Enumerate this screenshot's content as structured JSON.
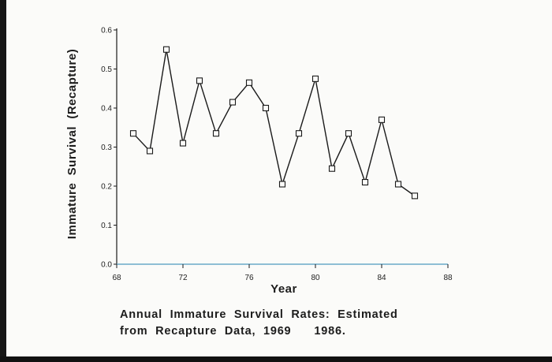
{
  "chart_data": {
    "type": "line",
    "xlabel": "Year",
    "ylabel": "Immature  Survival  (Recapture)",
    "xlim": [
      68,
      88
    ],
    "ylim": [
      0.0,
      0.6
    ],
    "x_ticks": [
      68,
      72,
      76,
      80,
      84,
      88
    ],
    "x_tick_labels": [
      "68",
      "72",
      "76",
      "80",
      "84",
      "88"
    ],
    "y_ticks": [
      0.0,
      0.1,
      0.2,
      0.3,
      0.4,
      0.5,
      0.6
    ],
    "y_tick_labels": [
      "0.0",
      "0.1",
      "0.2",
      "0.3",
      "0.4",
      "0.5",
      "0.6"
    ],
    "grid": false,
    "marker": "open-square",
    "series": [
      {
        "x": [
          69,
          70,
          71,
          72,
          73,
          74,
          75,
          76,
          77,
          78,
          79,
          80,
          81,
          82,
          83,
          84,
          85,
          86
        ],
        "values": [
          0.335,
          0.29,
          0.55,
          0.31,
          0.47,
          0.335,
          0.415,
          0.465,
          0.4,
          0.205,
          0.335,
          0.475,
          0.245,
          0.335,
          0.21,
          0.37,
          0.205,
          0.175
        ]
      }
    ],
    "caption_lines": [
      "Annual  Immature  Survival  Rates:  Estimated",
      "from  Recapture  Data,  1969      1986."
    ]
  },
  "colors": {
    "background": "#fbfbf9",
    "line": "#1a1a1a",
    "x_axis_line": "#6aa9c9"
  }
}
